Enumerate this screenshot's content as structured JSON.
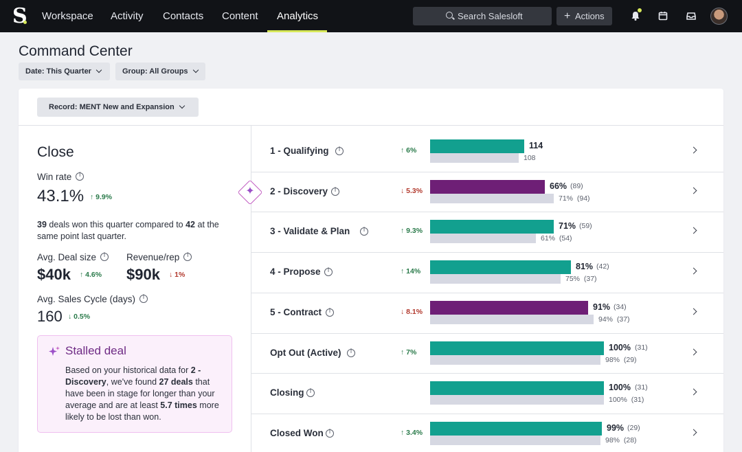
{
  "nav": {
    "logo": "S",
    "links": [
      "Workspace",
      "Activity",
      "Contacts",
      "Content",
      "Analytics"
    ],
    "active": "Analytics",
    "search_placeholder": "Search Salesloft",
    "actions_label": "Actions",
    "icons": [
      "bell-icon",
      "calendar-icon",
      "inbox-icon",
      "avatar"
    ]
  },
  "header": {
    "title": "Command Center",
    "filters": [
      "Date: This Quarter",
      "Group: All Groups"
    ]
  },
  "record_filter": "Record: MENT New and Expansion",
  "close_panel": {
    "title": "Close",
    "win_rate_label": "Win rate",
    "win_rate": "43.1%",
    "win_rate_delta": "9.9%",
    "deals_won": "39",
    "deals_text_1": " deals won this quarter compared to ",
    "deals_prev": "42",
    "deals_text_2": " at the same point last quarter.",
    "avg_deal_label": "Avg. Deal size",
    "avg_deal": "$40k",
    "avg_deal_delta": "4.6%",
    "rev_rep_label": "Revenue/rep",
    "rev_rep": "$90k",
    "rev_rep_delta": "1%",
    "cycle_label": "Avg. Sales Cycle (days)",
    "cycle": "160",
    "cycle_delta": "0.5%"
  },
  "stalled": {
    "title": "Stalled deal",
    "t1": "Based on your historical data for ",
    "stage": "2 - Discovery",
    "t2": ", we've found ",
    "deals": "27 deals",
    "t3": " that have been in stage for longer than your average and are at least ",
    "times": "5.7 times",
    "t4": " more likely to be lost than won."
  },
  "colors": {
    "teal": "#12a08f",
    "purple": "#6e1f76",
    "prev": "#d6d8e2",
    "accent": "#d7e85a"
  },
  "stages": [
    {
      "name": "1 - Qualifying",
      "delta": "6%",
      "dir": "up",
      "cur_label": "114",
      "cur_count": "",
      "prev_label": "108",
      "prev_count": "",
      "cur_frac": 0.54,
      "prev_frac": 0.51,
      "color": "teal"
    },
    {
      "name": "2 - Discovery",
      "delta": "5.3%",
      "dir": "down",
      "cur_label": "66%",
      "cur_count": "(89)",
      "prev_label": "71%",
      "prev_count": "(94)",
      "cur_frac": 0.66,
      "prev_frac": 0.71,
      "color": "purple"
    },
    {
      "name": "3 - Validate & Plan",
      "delta": "9.3%",
      "dir": "up",
      "cur_label": "71%",
      "cur_count": "(59)",
      "prev_label": "61%",
      "prev_count": "(54)",
      "cur_frac": 0.71,
      "prev_frac": 0.61,
      "color": "teal"
    },
    {
      "name": "4 - Propose",
      "delta": "14%",
      "dir": "up",
      "cur_label": "81%",
      "cur_count": "(42)",
      "prev_label": "75%",
      "prev_count": "(37)",
      "cur_frac": 0.81,
      "prev_frac": 0.75,
      "color": "teal"
    },
    {
      "name": "5 - Contract",
      "delta": "8.1%",
      "dir": "down",
      "cur_label": "91%",
      "cur_count": "(34)",
      "prev_label": "94%",
      "prev_count": "(37)",
      "cur_frac": 0.91,
      "prev_frac": 0.94,
      "color": "purple"
    },
    {
      "name": "Opt Out (Active)",
      "delta": "7%",
      "dir": "up",
      "cur_label": "100%",
      "cur_count": "(31)",
      "prev_label": "98%",
      "prev_count": "(29)",
      "cur_frac": 1.0,
      "prev_frac": 0.98,
      "color": "teal"
    },
    {
      "name": "Closing",
      "delta": "",
      "dir": "",
      "cur_label": "100%",
      "cur_count": "(31)",
      "prev_label": "100%",
      "prev_count": "(31)",
      "cur_frac": 1.0,
      "prev_frac": 1.0,
      "color": "teal"
    },
    {
      "name": "Closed Won",
      "delta": "3.4%",
      "dir": "up",
      "cur_label": "99%",
      "cur_count": "(29)",
      "prev_label": "98%",
      "prev_count": "(28)",
      "cur_frac": 0.99,
      "prev_frac": 0.98,
      "color": "teal"
    }
  ]
}
